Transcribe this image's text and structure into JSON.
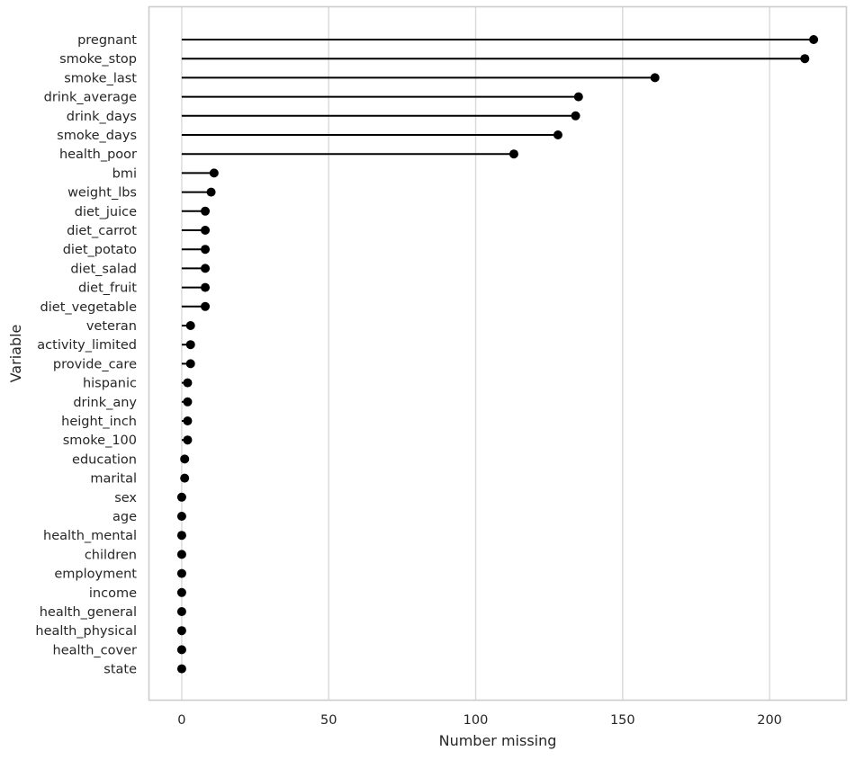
{
  "chart_data": {
    "type": "lollipop",
    "title": "",
    "xlabel": "Number missing",
    "ylabel": "Variable",
    "xlim": [
      -11,
      226
    ],
    "xticks": [
      0,
      50,
      100,
      150,
      200
    ],
    "grid": "vertical",
    "categories": [
      "pregnant",
      "smoke_stop",
      "smoke_last",
      "drink_average",
      "drink_days",
      "smoke_days",
      "health_poor",
      "bmi",
      "weight_lbs",
      "diet_juice",
      "diet_carrot",
      "diet_potato",
      "diet_salad",
      "diet_fruit",
      "diet_vegetable",
      "veteran",
      "activity_limited",
      "provide_care",
      "hispanic",
      "drink_any",
      "height_inch",
      "smoke_100",
      "education",
      "marital",
      "sex",
      "age",
      "health_mental",
      "children",
      "employment",
      "income",
      "health_general",
      "health_physical",
      "health_cover",
      "state"
    ],
    "values": [
      215,
      212,
      161,
      135,
      134,
      128,
      113,
      11,
      10,
      8,
      8,
      8,
      8,
      8,
      8,
      3,
      3,
      3,
      2,
      2,
      2,
      2,
      1,
      1,
      0,
      0,
      0,
      0,
      0,
      0,
      0,
      0,
      0,
      0
    ],
    "colors": {
      "marker": "#000000",
      "stem": "#000000",
      "grid": "#d9d9d9",
      "frame": "#cccccc",
      "text": "#262626"
    }
  }
}
